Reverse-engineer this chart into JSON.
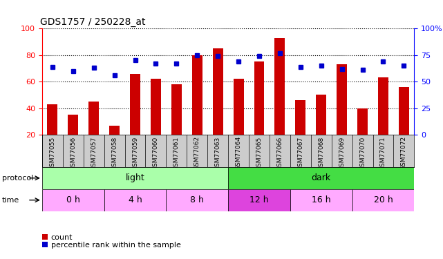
{
  "title": "GDS1757 / 250228_at",
  "samples": [
    "GSM77055",
    "GSM77056",
    "GSM77057",
    "GSM77058",
    "GSM77059",
    "GSM77060",
    "GSM77061",
    "GSM77062",
    "GSM77063",
    "GSM77064",
    "GSM77065",
    "GSM77066",
    "GSM77067",
    "GSM77068",
    "GSM77069",
    "GSM77070",
    "GSM77071",
    "GSM77072"
  ],
  "count_values": [
    43,
    35,
    45,
    27,
    66,
    62,
    58,
    80,
    85,
    62,
    75,
    93,
    46,
    50,
    73,
    40,
    63,
    56
  ],
  "percentile_values": [
    64,
    60,
    63,
    56,
    70,
    67,
    67,
    75,
    74,
    69,
    74,
    77,
    64,
    65,
    62,
    61,
    69,
    65
  ],
  "ylim_left": [
    20,
    100
  ],
  "ylim_right": [
    0,
    100
  ],
  "yticks_left": [
    20,
    40,
    60,
    80,
    100
  ],
  "yticks_right": [
    0,
    25,
    50,
    75,
    100
  ],
  "ytick_labels_right": [
    "0",
    "25",
    "50",
    "75",
    "100%"
  ],
  "bar_color": "#cc0000",
  "dot_color": "#0000cc",
  "protocol_groups": [
    {
      "label": "light",
      "start": 0,
      "end": 9,
      "color": "#aaffaa"
    },
    {
      "label": "dark",
      "start": 9,
      "end": 18,
      "color": "#44dd44"
    }
  ],
  "time_groups": [
    {
      "label": "0 h",
      "start": 0,
      "end": 3,
      "color": "#ffaaff"
    },
    {
      "label": "4 h",
      "start": 3,
      "end": 6,
      "color": "#ffaaff"
    },
    {
      "label": "8 h",
      "start": 6,
      "end": 9,
      "color": "#ffaaff"
    },
    {
      "label": "12 h",
      "start": 9,
      "end": 12,
      "color": "#dd44dd"
    },
    {
      "label": "16 h",
      "start": 12,
      "end": 15,
      "color": "#ffaaff"
    },
    {
      "label": "20 h",
      "start": 15,
      "end": 18,
      "color": "#ffaaff"
    }
  ],
  "legend_count_label": "count",
  "legend_pct_label": "percentile rank within the sample",
  "sample_bg_color": "#cccccc",
  "label_left_protocol": "protocol",
  "label_left_time": "time"
}
